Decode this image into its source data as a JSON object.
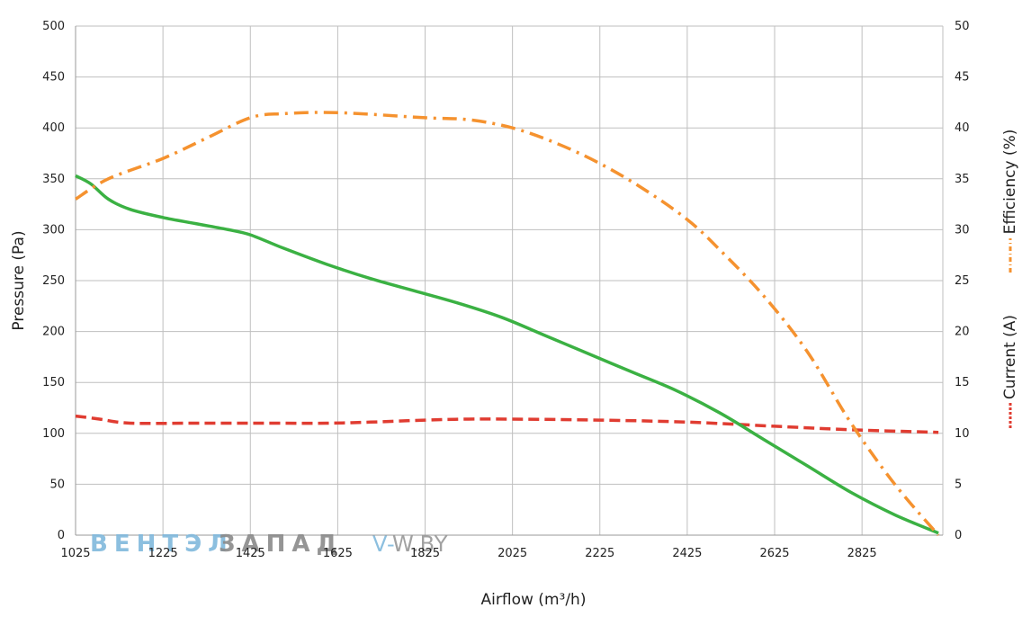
{
  "chart_data": {
    "type": "line",
    "xlabel": "Airflow (m³/h)",
    "ylabel_left": "Pressure (Pa)",
    "ylabel_right_efficiency": "Efficiency (%)",
    "ylabel_right_current": "Current (A)",
    "xlim": [
      1025,
      3010
    ],
    "x_ticks": [
      "1025",
      "1225",
      "1425",
      "1625",
      "1825",
      "2025",
      "2225",
      "2425",
      "2625",
      "2825"
    ],
    "ylim_left": [
      0,
      500
    ],
    "y_ticks_left": [
      "0",
      "50",
      "100",
      "150",
      "200",
      "250",
      "300",
      "350",
      "400",
      "450",
      "500"
    ],
    "ylim_right": [
      0,
      50
    ],
    "y_ticks_right": [
      "0",
      "5",
      "10",
      "15",
      "20",
      "25",
      "30",
      "35",
      "40",
      "45",
      "50"
    ],
    "grid": true,
    "series": [
      {
        "name": "Pressure (Pa)",
        "axis": "left",
        "color": "#3bb143",
        "style": "solid",
        "points": [
          [
            1025,
            353
          ],
          [
            1060,
            345
          ],
          [
            1100,
            330
          ],
          [
            1150,
            320
          ],
          [
            1225,
            312
          ],
          [
            1300,
            306
          ],
          [
            1375,
            300
          ],
          [
            1425,
            295
          ],
          [
            1500,
            282
          ],
          [
            1600,
            266
          ],
          [
            1700,
            252
          ],
          [
            1800,
            240
          ],
          [
            1900,
            228
          ],
          [
            2000,
            214
          ],
          [
            2100,
            196
          ],
          [
            2200,
            178
          ],
          [
            2300,
            160
          ],
          [
            2400,
            142
          ],
          [
            2500,
            120
          ],
          [
            2600,
            94
          ],
          [
            2700,
            68
          ],
          [
            2800,
            42
          ],
          [
            2900,
            20
          ],
          [
            3000,
            2
          ]
        ]
      },
      {
        "name": "Efficiency (%)",
        "axis": "right",
        "color": "#f5922f",
        "style": "dashdot",
        "points": [
          [
            1025,
            33
          ],
          [
            1100,
            35
          ],
          [
            1225,
            37
          ],
          [
            1325,
            39
          ],
          [
            1425,
            41
          ],
          [
            1500,
            41.4
          ],
          [
            1625,
            41.5
          ],
          [
            1825,
            41
          ],
          [
            1925,
            40.8
          ],
          [
            2025,
            40
          ],
          [
            2125,
            38.5
          ],
          [
            2225,
            36.5
          ],
          [
            2325,
            34
          ],
          [
            2425,
            31
          ],
          [
            2500,
            28
          ],
          [
            2600,
            23.5
          ],
          [
            2700,
            18
          ],
          [
            2800,
            11
          ],
          [
            2900,
            5
          ],
          [
            3000,
            0
          ]
        ]
      },
      {
        "name": "Current (A)",
        "axis": "right",
        "color": "#e03c31",
        "style": "dashed",
        "points": [
          [
            1025,
            11.7
          ],
          [
            1080,
            11.4
          ],
          [
            1150,
            11.0
          ],
          [
            1300,
            11.0
          ],
          [
            1450,
            11.0
          ],
          [
            1600,
            11.0
          ],
          [
            1700,
            11.1
          ],
          [
            1825,
            11.3
          ],
          [
            1925,
            11.4
          ],
          [
            2025,
            11.4
          ],
          [
            2225,
            11.3
          ],
          [
            2425,
            11.1
          ],
          [
            2625,
            10.7
          ],
          [
            2800,
            10.35
          ],
          [
            3000,
            10.1
          ]
        ]
      }
    ],
    "watermark": {
      "part1": "ВЕНТЭЛ",
      "part2": "ЗАПАД",
      "site_prefix": "V-",
      "site_rest": "W.BY",
      "color1": "#7fb8dc",
      "color2": "#8a8a8a"
    }
  }
}
